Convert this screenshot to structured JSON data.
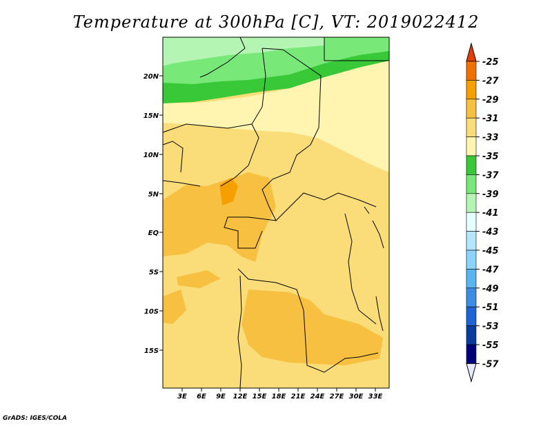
{
  "title": "Temperature at 300hPa [C], VT: 2019022412",
  "footer": "GrADS: IGES/COLA",
  "map": {
    "lat_labels": [
      "20N",
      "15N",
      "10N",
      "5N",
      "EQ",
      "5S",
      "10S",
      "15S"
    ],
    "lon_labels": [
      "3E",
      "6E",
      "9E",
      "12E",
      "15E",
      "18E",
      "21E",
      "24E",
      "27E",
      "30E",
      "33E"
    ]
  },
  "colorbar": {
    "labels": [
      "-25",
      "-27",
      "-29",
      "-31",
      "-33",
      "-35",
      "-37",
      "-39",
      "-41",
      "-43",
      "-45",
      "-47",
      "-49",
      "-51",
      "-53",
      "-55",
      "-57"
    ],
    "colors": [
      "#e04000",
      "#f07000",
      "#f5a000",
      "#f8c040",
      "#fadc78",
      "#fff5b0",
      "#38c838",
      "#78e878",
      "#b4f5b4",
      "#e6ffff",
      "#b4e6ff",
      "#8cd2ff",
      "#5ab4f0",
      "#3c8ce6",
      "#1e64d2",
      "#0a3ca0",
      "#000078",
      "#e8e8ff"
    ],
    "top_color": "#e04000",
    "bottom_color": "#e8e8ff"
  }
}
